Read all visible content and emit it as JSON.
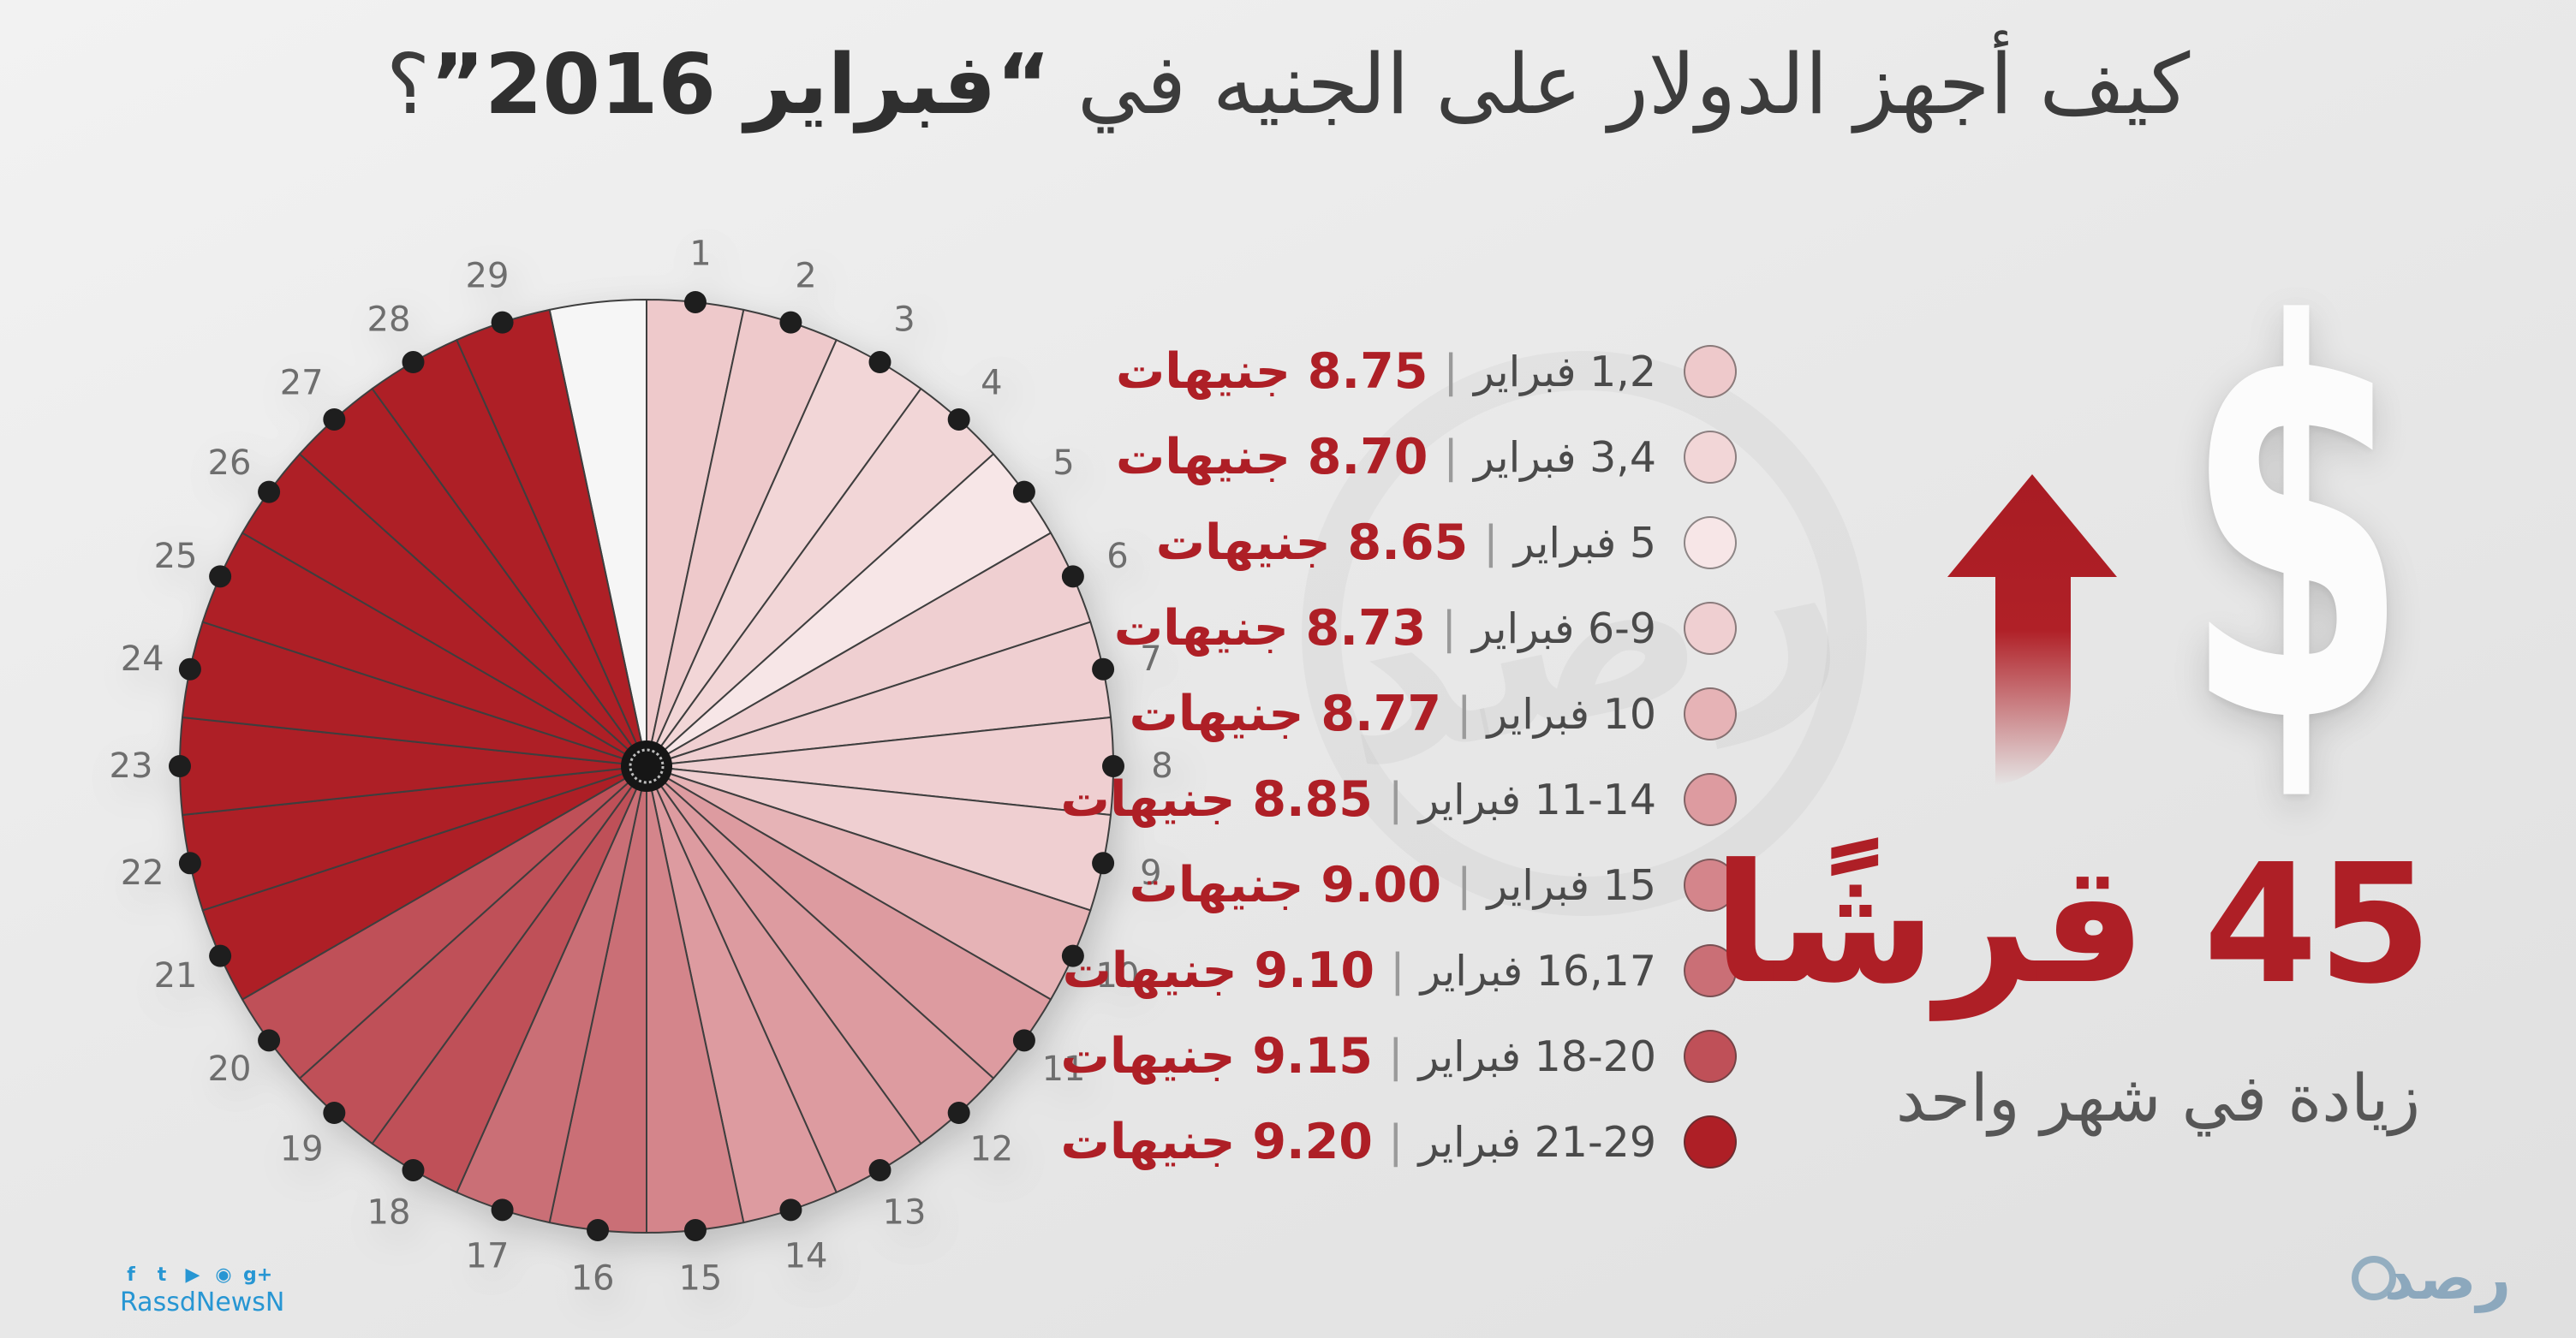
{
  "title": {
    "part1": "كيف أجهز الدولار على الجنيه في",
    "bold": "“فبراير 2016”",
    "part2": "؟"
  },
  "chart_data": {
    "type": "pie",
    "title": "كيف أجهز الدولار على الجنيه في فبراير 2016؟",
    "unit": "جنيهات",
    "days_in_month": 29,
    "equal_segments": true,
    "legend_position": "right",
    "separator": "|",
    "day_labels": [
      "1",
      "2",
      "3",
      "4",
      "5",
      "6",
      "7",
      "8",
      "9",
      "10",
      "11",
      "12",
      "13",
      "14",
      "15",
      "16",
      "17",
      "18",
      "19",
      "20",
      "21",
      "22",
      "23",
      "24",
      "25",
      "26",
      "27",
      "28",
      "29"
    ],
    "segments": [
      {
        "date_label": "1,2 فبراير",
        "days": [
          1,
          2
        ],
        "value": 8.75,
        "value_label": "8.75 جنيهات",
        "color": "#eec9cb"
      },
      {
        "date_label": "3,4 فبراير",
        "days": [
          3,
          4
        ],
        "value": 8.7,
        "value_label": "8.70 جنيهات",
        "color": "#f2d6d7"
      },
      {
        "date_label": "5 فبراير",
        "days": [
          5
        ],
        "value": 8.65,
        "value_label": "8.65 جنيهات",
        "color": "#f7e6e7"
      },
      {
        "date_label": "6-9 فبراير",
        "days": [
          6,
          7,
          8,
          9
        ],
        "value": 8.73,
        "value_label": "8.73 جنيهات",
        "color": "#efcfd1"
      },
      {
        "date_label": "10 فبراير",
        "days": [
          10
        ],
        "value": 8.77,
        "value_label": "8.77 جنيهات",
        "color": "#e6b3b6"
      },
      {
        "date_label": "11-14 فبراير",
        "days": [
          11,
          12,
          13,
          14
        ],
        "value": 8.85,
        "value_label": "8.85 جنيهات",
        "color": "#dd9ba0"
      },
      {
        "date_label": "15 فبراير",
        "days": [
          15
        ],
        "value": 9.0,
        "value_label": "9.00 جنيهات",
        "color": "#d4858b"
      },
      {
        "date_label": "16,17 فبراير",
        "days": [
          16,
          17
        ],
        "value": 9.1,
        "value_label": "9.10 جنيهات",
        "color": "#ca6f76"
      },
      {
        "date_label": "18-20 فبراير",
        "days": [
          18,
          19,
          20
        ],
        "value": 9.15,
        "value_label": "9.15 جنيهات",
        "color": "#bf5058"
      },
      {
        "date_label": "21-29 فبراير",
        "days": [
          21,
          22,
          23,
          24,
          25,
          26,
          27,
          28,
          29
        ],
        "value": 9.2,
        "value_label": "9.20 جنيهات",
        "color": "#ae1f26"
      }
    ],
    "style": {
      "gap_color": "#f6f6f6",
      "stroke_color": "#3e3e3e",
      "dot_color": "#1e1e1e",
      "label_color": "#6e6e6e",
      "hub_color": "#161616"
    }
  },
  "highlight": {
    "dollar_glyph": "$",
    "amount": "45",
    "amount_unit": "قرشًا",
    "caption": "زيادة في شهر واحد",
    "accent_color": "#ae1f26"
  },
  "watermark_text": "رصد",
  "footer": {
    "social_handle": "RassdNewsN",
    "social_color": "#2796d3",
    "logo_text": "رصد"
  }
}
